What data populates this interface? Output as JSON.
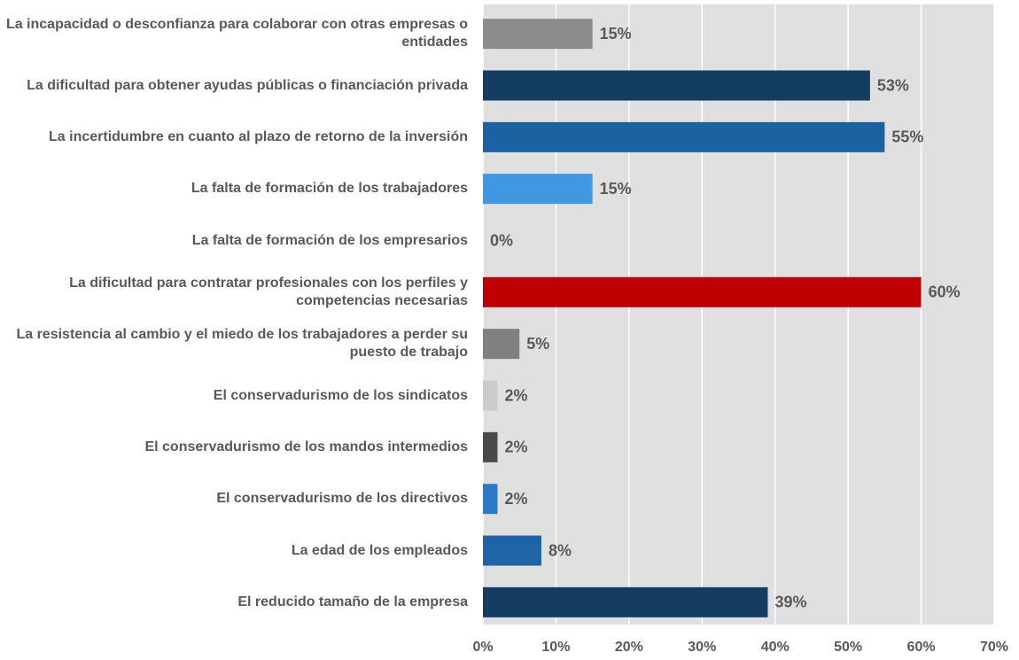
{
  "chart_data": {
    "type": "barh",
    "categories": [
      "La incapacidad o desconfianza para colaborar con otras empresas o entidades",
      "La dificultad para obtener ayudas públicas o financiación privada",
      "La incertidumbre en cuanto al plazo de retorno de la inversión",
      "La falta de formación de los trabajadores",
      "La falta de formación de los empresarios",
      "La dificultad para contratar profesionales con los perfiles y competencias necesarias",
      "La resistencia al cambio y el miedo de los trabajadores a perder su puesto de trabajo",
      "El conservadurismo de los sindicatos",
      "El conservadurismo de los mandos intermedios",
      "El conservadurismo de los directivos",
      "La edad de los empleados",
      "El reducido tamaño de la empresa"
    ],
    "values": [
      15,
      53,
      55,
      15,
      0,
      60,
      5,
      2,
      2,
      2,
      8,
      39
    ],
    "value_labels": [
      "15%",
      "53%",
      "55%",
      "15%",
      "0%",
      "60%",
      "5%",
      "2%",
      "2%",
      "2%",
      "8%",
      "39%"
    ],
    "colors": [
      "#8c8c8c",
      "#133d63",
      "#1b62a2",
      "#3f98e2",
      "#9e9e9e",
      "#c00000",
      "#808080",
      "#cbcbcb",
      "#4a4a4a",
      "#2b79c7",
      "#1e64a6",
      "#133d63"
    ],
    "xlim": [
      0,
      70
    ],
    "xticks": [
      {
        "value": 0,
        "label": "0%"
      },
      {
        "value": 10,
        "label": "10%"
      },
      {
        "value": 20,
        "label": "20%"
      },
      {
        "value": 30,
        "label": "30%"
      },
      {
        "value": 40,
        "label": "40%"
      },
      {
        "value": 50,
        "label": "50%"
      },
      {
        "value": 60,
        "label": "60%"
      },
      {
        "value": 70,
        "label": "70%"
      }
    ],
    "grid": true
  }
}
